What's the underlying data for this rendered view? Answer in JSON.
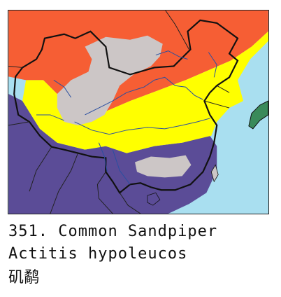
{
  "map": {
    "colors": {
      "sea": "#a9dff0",
      "breeding": "#f65e34",
      "passage": "#ffff00",
      "wintering": "#5b4c97",
      "unoccupied": "#ccc6c6",
      "neighbor_land": "#3a8a5a",
      "border": "#111111",
      "river": "#2a4fa0"
    }
  },
  "caption": {
    "number_and_name": "351. Common Sandpiper",
    "scientific_name": "Actitis hypoleucos",
    "chinese_name": "矶鹬"
  }
}
